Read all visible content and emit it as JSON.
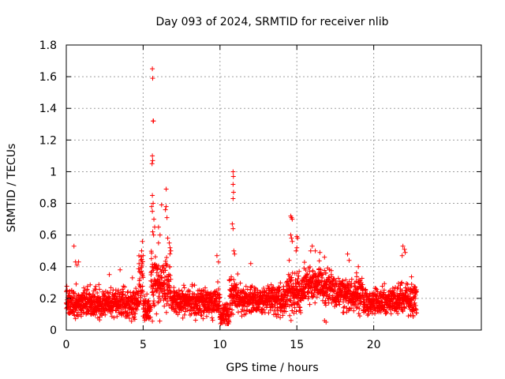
{
  "chart_data": {
    "type": "scatter",
    "title": "Day 093 of 2024, SRMTID for receiver nlib",
    "xlabel": "GPS time / hours",
    "ylabel": "SRMTID / TECUs",
    "xlim": [
      0,
      27
    ],
    "ylim": [
      0,
      1.8
    ],
    "x_ticks": [
      0,
      5,
      10,
      15,
      20
    ],
    "x_tick_labels": [
      "0",
      "5",
      "10",
      "15",
      "20"
    ],
    "y_ticks": [
      0,
      0.2,
      0.4,
      0.6,
      0.8,
      1.0,
      1.2,
      1.4,
      1.6,
      1.8
    ],
    "y_tick_labels": [
      "0",
      "0.2",
      "0.4",
      "0.6",
      "0.8",
      "1",
      "1.2",
      "1.4",
      "1.6",
      "1.8"
    ],
    "grid": true,
    "marker": "+",
    "series_color": "#ff0000",
    "grid_color": "#a0a0a0",
    "baseline": {
      "x_start": 0.0,
      "x_end": 22.8,
      "points_per_hour": 120,
      "seed": 93,
      "segments": [
        {
          "from": 0.0,
          "to": 4.7,
          "center": 0.17,
          "spread": 0.07
        },
        {
          "from": 4.7,
          "to": 5.0,
          "center": 0.3,
          "spread": 0.15
        },
        {
          "from": 5.0,
          "to": 5.5,
          "center": 0.13,
          "spread": 0.06
        },
        {
          "from": 5.5,
          "to": 6.8,
          "center": 0.3,
          "spread": 0.14
        },
        {
          "from": 6.8,
          "to": 10.0,
          "center": 0.18,
          "spread": 0.07
        },
        {
          "from": 10.0,
          "to": 10.6,
          "center": 0.1,
          "spread": 0.06
        },
        {
          "from": 10.6,
          "to": 11.2,
          "center": 0.22,
          "spread": 0.1
        },
        {
          "from": 11.2,
          "to": 14.3,
          "center": 0.19,
          "spread": 0.07
        },
        {
          "from": 14.3,
          "to": 15.4,
          "center": 0.23,
          "spread": 0.1
        },
        {
          "from": 15.4,
          "to": 17.3,
          "center": 0.28,
          "spread": 0.09
        },
        {
          "from": 17.3,
          "to": 19.3,
          "center": 0.23,
          "spread": 0.08
        },
        {
          "from": 19.3,
          "to": 21.5,
          "center": 0.18,
          "spread": 0.07
        },
        {
          "from": 21.5,
          "to": 22.8,
          "center": 0.2,
          "spread": 0.09
        }
      ]
    },
    "highlight_points": [
      {
        "x": 0.5,
        "y": 0.53
      },
      {
        "x": 0.6,
        "y": 0.43
      },
      {
        "x": 0.7,
        "y": 0.41
      },
      {
        "x": 0.8,
        "y": 0.43
      },
      {
        "x": 2.8,
        "y": 0.35
      },
      {
        "x": 3.5,
        "y": 0.38
      },
      {
        "x": 4.3,
        "y": 0.33
      },
      {
        "x": 4.9,
        "y": 0.5
      },
      {
        "x": 4.95,
        "y": 0.56
      },
      {
        "x": 5.0,
        "y": 0.47
      },
      {
        "x": 4.85,
        "y": 0.44
      },
      {
        "x": 5.6,
        "y": 1.65
      },
      {
        "x": 5.62,
        "y": 1.59
      },
      {
        "x": 5.65,
        "y": 1.32
      },
      {
        "x": 5.67,
        "y": 1.32
      },
      {
        "x": 5.6,
        "y": 1.1
      },
      {
        "x": 5.62,
        "y": 1.07
      },
      {
        "x": 5.58,
        "y": 1.05
      },
      {
        "x": 5.6,
        "y": 0.85
      },
      {
        "x": 5.65,
        "y": 0.8
      },
      {
        "x": 5.55,
        "y": 0.78
      },
      {
        "x": 5.6,
        "y": 0.75
      },
      {
        "x": 5.7,
        "y": 0.7
      },
      {
        "x": 5.75,
        "y": 0.65
      },
      {
        "x": 5.62,
        "y": 0.62
      },
      {
        "x": 5.68,
        "y": 0.6
      },
      {
        "x": 6.0,
        "y": 0.65
      },
      {
        "x": 6.1,
        "y": 0.6
      },
      {
        "x": 6.0,
        "y": 0.55
      },
      {
        "x": 6.2,
        "y": 0.79
      },
      {
        "x": 6.5,
        "y": 0.89
      },
      {
        "x": 6.5,
        "y": 0.78
      },
      {
        "x": 6.45,
        "y": 0.76
      },
      {
        "x": 6.55,
        "y": 0.71
      },
      {
        "x": 6.6,
        "y": 0.58
      },
      {
        "x": 6.7,
        "y": 0.55
      },
      {
        "x": 6.75,
        "y": 0.52
      },
      {
        "x": 6.8,
        "y": 0.5
      },
      {
        "x": 9.8,
        "y": 0.47
      },
      {
        "x": 9.9,
        "y": 0.43
      },
      {
        "x": 10.85,
        "y": 1.0
      },
      {
        "x": 10.87,
        "y": 0.97
      },
      {
        "x": 10.85,
        "y": 0.92
      },
      {
        "x": 10.88,
        "y": 0.87
      },
      {
        "x": 10.85,
        "y": 0.83
      },
      {
        "x": 10.8,
        "y": 0.67
      },
      {
        "x": 10.85,
        "y": 0.64
      },
      {
        "x": 10.9,
        "y": 0.5
      },
      {
        "x": 10.95,
        "y": 0.48
      },
      {
        "x": 12.0,
        "y": 0.42
      },
      {
        "x": 14.6,
        "y": 0.72
      },
      {
        "x": 14.65,
        "y": 0.71
      },
      {
        "x": 14.7,
        "y": 0.7
      },
      {
        "x": 14.6,
        "y": 0.6
      },
      {
        "x": 14.65,
        "y": 0.58
      },
      {
        "x": 14.7,
        "y": 0.56
      },
      {
        "x": 14.5,
        "y": 0.44
      },
      {
        "x": 15.0,
        "y": 0.59
      },
      {
        "x": 15.05,
        "y": 0.58
      },
      {
        "x": 15.0,
        "y": 0.52
      },
      {
        "x": 14.95,
        "y": 0.5
      },
      {
        "x": 15.9,
        "y": 0.5
      },
      {
        "x": 16.0,
        "y": 0.53
      },
      {
        "x": 16.2,
        "y": 0.5
      },
      {
        "x": 16.5,
        "y": 0.49
      },
      {
        "x": 16.8,
        "y": 0.46
      },
      {
        "x": 18.3,
        "y": 0.48
      },
      {
        "x": 18.4,
        "y": 0.44
      },
      {
        "x": 19.0,
        "y": 0.4
      },
      {
        "x": 21.9,
        "y": 0.53
      },
      {
        "x": 22.0,
        "y": 0.51
      },
      {
        "x": 22.05,
        "y": 0.49
      },
      {
        "x": 21.85,
        "y": 0.47
      },
      {
        "x": 16.8,
        "y": 0.06
      },
      {
        "x": 16.9,
        "y": 0.05
      },
      {
        "x": 10.5,
        "y": 0.04
      }
    ]
  }
}
